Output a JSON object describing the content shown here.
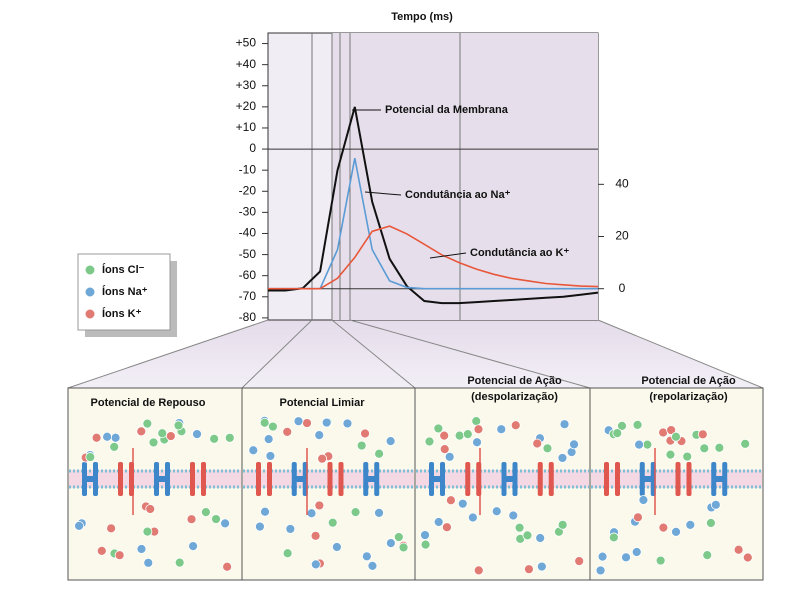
{
  "chart_data": {
    "type": "line",
    "xlabel": "Tempo (ms)",
    "categories": [
      null,
      null,
      null,
      null,
      null,
      null,
      null,
      null,
      null,
      null,
      null,
      null,
      null,
      null,
      null,
      null,
      null,
      null,
      null,
      null
    ],
    "ylim": [
      -81,
      55
    ],
    "yticks": [
      {
        "value": 50,
        "label": "+50"
      },
      {
        "value": 40,
        "label": "+40"
      },
      {
        "value": 30,
        "label": "+30"
      },
      {
        "value": 20,
        "label": "+20"
      },
      {
        "value": 10,
        "label": "+10"
      },
      0,
      -10,
      -20,
      -30,
      -40,
      -50,
      -60,
      -70,
      -80
    ],
    "y2lim": [
      -12,
      98
    ],
    "y2ticks": [
      0,
      20,
      40
    ],
    "series": [
      {
        "name": "Potencial da Membrana",
        "color": "#111111",
        "values": [
          -67,
          -67,
          -66,
          -58,
          -10,
          20,
          -25,
          -52,
          -65,
          -72,
          -73,
          -73,
          -72.5,
          -72,
          -71.5,
          -71,
          -70.5,
          -70,
          -69,
          -68
        ]
      },
      {
        "name": "Condutância ao Na⁺",
        "color": "#5b9bd5",
        "axis": "y2",
        "values": [
          0,
          0,
          0,
          0,
          15,
          50,
          15,
          3,
          0.5,
          0,
          0,
          0,
          0,
          0,
          0,
          0,
          0,
          0,
          0,
          0
        ]
      },
      {
        "name": "Condutância ao K⁺",
        "color": "#e8573a",
        "axis": "y2",
        "values": [
          0,
          0,
          0,
          0,
          4,
          12,
          22,
          24,
          21,
          17,
          13,
          10,
          7.5,
          5.5,
          4,
          3,
          2,
          1.5,
          1,
          0.8
        ]
      }
    ]
  },
  "legend": {
    "items": [
      {
        "label": "Íons Cl⁻",
        "color": "#7cc98a"
      },
      {
        "label": "Íons Na⁺",
        "color": "#6fa8d6"
      },
      {
        "label": "Íons K⁺",
        "color": "#e07a72"
      }
    ]
  },
  "panels": [
    {
      "title_lines": [
        "Potencial de Repouso"
      ]
    },
    {
      "title_lines": [
        "Potencial Limiar"
      ]
    },
    {
      "title_lines": [
        "Potencial de Ação",
        "(despolarização)"
      ]
    },
    {
      "title_lines": [
        "Potencial de Ação",
        "(repolarização)"
      ]
    }
  ]
}
